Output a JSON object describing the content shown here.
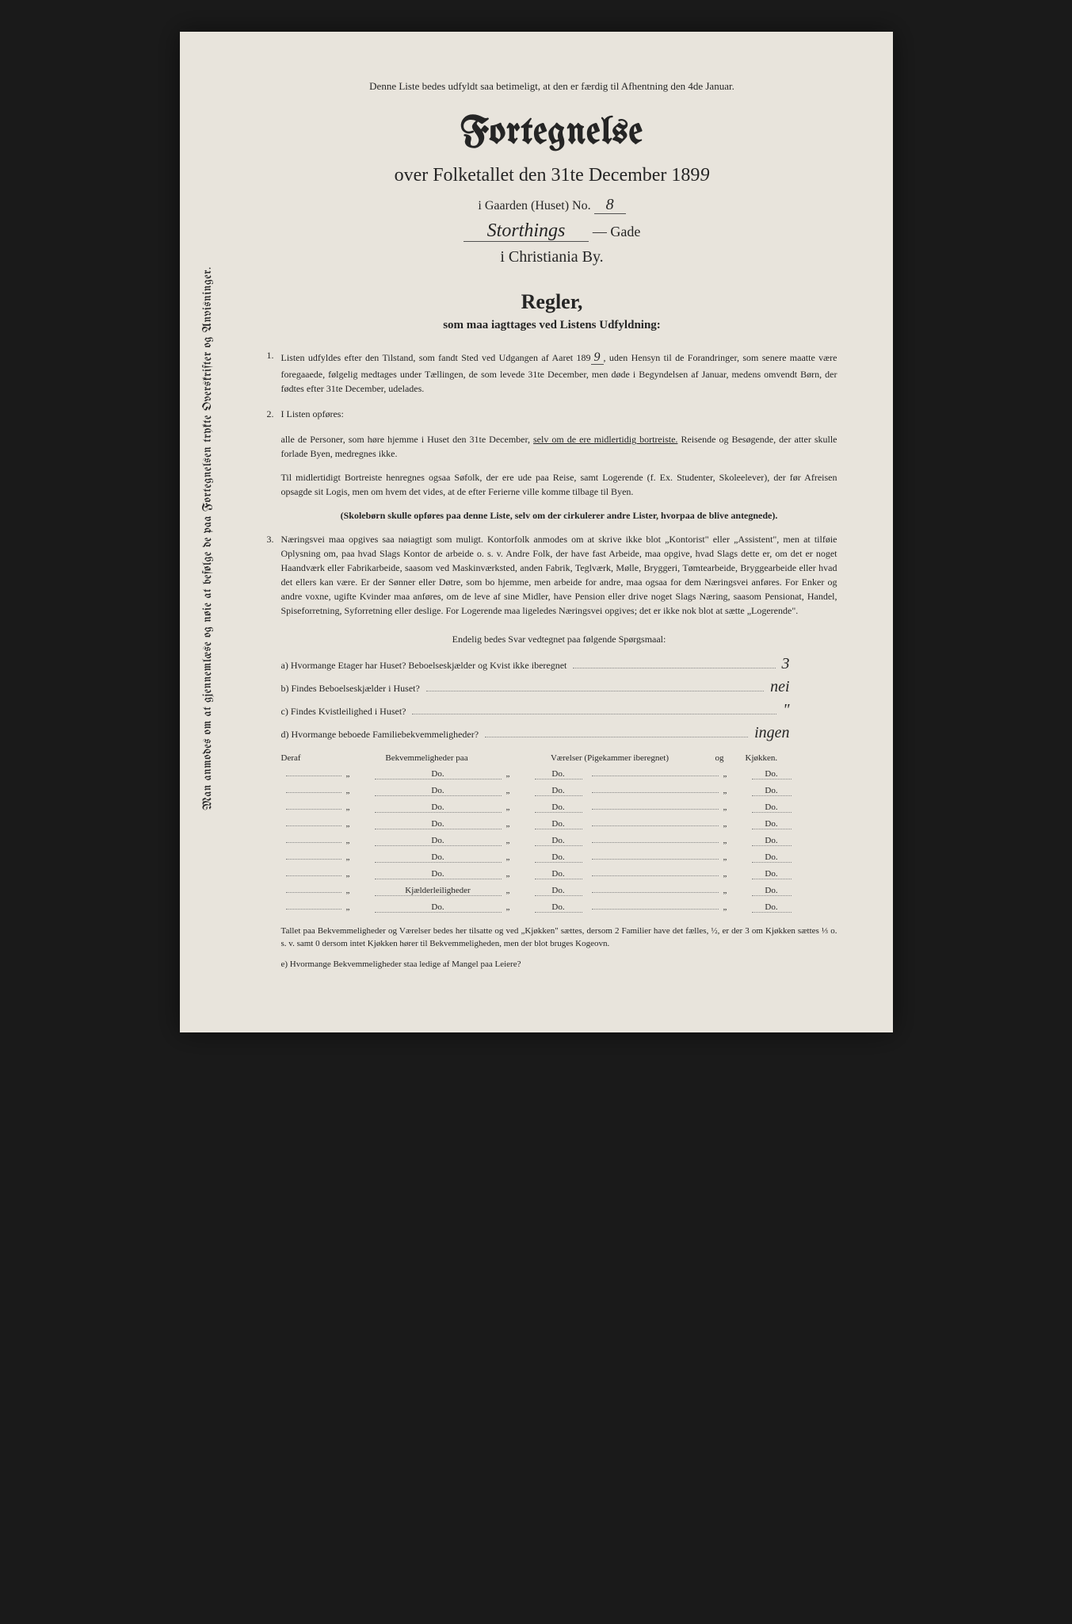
{
  "colors": {
    "page_bg": "#e8e4dc",
    "outer_bg": "#1a1a1a",
    "text": "#2a2a2a",
    "dotted": "#888888",
    "underline": "#555555"
  },
  "typography": {
    "blackletter_family": "Old English Text MT, UnifrakturMaguntia, serif",
    "script_family": "Brush Script MT, cursive",
    "body_family": "Georgia, Times New Roman, serif",
    "title_size_pt": 48,
    "subtitle_size_pt": 24,
    "body_size_pt": 12
  },
  "vertical_note": "Man anmodes om at gjennemlæse og nøie at befølge de paa Fortegnelsen trykte Overskrifter og Anvisninger.",
  "top_note": "Denne Liste bedes udfyldt saa betimeligt, at den er færdig til Afhentning den 4de Januar.",
  "title": "Fortegnelse",
  "subtitle_prefix": "over Folketallet den 31te December 189",
  "year_suffix": "9",
  "garden_label_pre": "i Gaarden (Huset) No.",
  "garden_no": "8",
  "street_hand": "Storthings",
  "street_suffix": "— Gade",
  "city": "i Christiania By.",
  "regler_title": "Regler,",
  "regler_sub": "som maa iagttages ved Listens Udfyldning:",
  "rule1_num": "1.",
  "rule1": "Listen udfyldes efter den Tilstand, som fandt Sted ved Udgangen af Aaret 189",
  "rule1_year": "9",
  "rule1_cont": ", uden Hensyn til de Forandringer, som senere maatte være foregaaede, følgelig medtages under Tællingen, de som levede 31te December, men døde i Begyndelsen af Januar, medens omvendt Børn, der fødtes efter 31te December, udelades.",
  "rule2_num": "2.",
  "rule2_intro": "I Listen opføres:",
  "rule2_a": "alle de Personer, som høre hjemme i Huset den 31te December, ",
  "rule2_a_u": "selv om de ere midlertidig bortreiste.",
  "rule2_a_end": " Reisende og Besøgende, der atter skulle forlade Byen, medregnes ikke.",
  "rule2_b": "Til midlertidigt Bortreiste henregnes ogsaa Søfolk, der ere ude paa Reise, samt Logerende (f. Ex. Studenter, Skoleelever), der før Afreisen opsagde sit Logis, men om hvem det vides, at de efter Ferierne ville komme tilbage til Byen.",
  "rule2_note": "(Skolebørn skulle opføres paa denne Liste, selv om der cirkulerer andre Lister, hvorpaa de blive antegnede).",
  "rule3_num": "3.",
  "rule3": "Næringsvei maa opgives saa nøiagtigt som muligt. Kontorfolk anmodes om at skrive ikke blot „Kontorist\" eller „Assistent\", men at tilføie Oplysning om, paa hvad Slags Kontor de arbeide o. s. v. Andre Folk, der have fast Arbeide, maa opgive, hvad Slags dette er, om det er noget Haandværk eller Fabrikarbeide, saasom ved Maskinværksted, anden Fabrik, Teglværk, Mølle, Bryggeri, Tømtearbeide, Bryggearbeide eller hvad det ellers kan være. Er der Sønner eller Døtre, som bo hjemme, men arbeide for andre, maa ogsaa for dem Næringsvei anføres. For Enker og andre voxne, ugifte Kvinder maa anføres, om de leve af sine Midler, have Pension eller drive noget Slags Næring, saasom Pensionat, Handel, Spiseforretning, Syforretning eller deslige. For Logerende maa ligeledes Næringsvei opgives; det er ikke nok blot at sætte „Logerende\".",
  "questions_intro": "Endelig bedes Svar vedtegnet paa følgende Spørgsmaal:",
  "qa_label": "a) Hvormange Etager har Huset? Beboelseskjælder og Kvist ikke iberegnet",
  "qa_ans": "3",
  "qb_label": "b) Findes Beboelseskjælder i Huset?",
  "qb_ans": "nei",
  "qc_label": "c) Findes Kvistleilighed i Huset?",
  "qc_ans": "\"",
  "qd_label": "d) Hvormange beboede Familiebekvemmeligheder?",
  "qd_ans": "ingen",
  "grid_header": {
    "deraf": "Deraf",
    "bekvem": "Bekvemmeligheder paa",
    "vaerelser": "Værelser (Pigekammer iberegnet)",
    "og": "og",
    "kjokken": "Kjøkken."
  },
  "grid_rows": [
    {
      "c1": "",
      "c3": "Do.",
      "c5": "Do.",
      "c8": "Do."
    },
    {
      "c1": "",
      "c3": "Do.",
      "c5": "Do.",
      "c8": "Do."
    },
    {
      "c1": "",
      "c3": "Do.",
      "c5": "Do.",
      "c8": "Do."
    },
    {
      "c1": "",
      "c3": "Do.",
      "c5": "Do.",
      "c8": "Do."
    },
    {
      "c1": "",
      "c3": "Do.",
      "c5": "Do.",
      "c8": "Do."
    },
    {
      "c1": "",
      "c3": "Do.",
      "c5": "Do.",
      "c8": "Do."
    },
    {
      "c1": "",
      "c3": "Do.",
      "c5": "Do.",
      "c8": "Do."
    },
    {
      "c1": "",
      "c3": "Kjælderleiligheder",
      "c5": "Do.",
      "c8": "Do."
    },
    {
      "c1": "",
      "c3": "Do.",
      "c5": "Do.",
      "c8": "Do."
    }
  ],
  "footer_note": "Tallet paa Bekvemmeligheder og Værelser bedes her tilsatte og ved „Kjøkken\" sættes, dersom 2 Familier have det fælles, ½, er der 3 om Kjøkken sættes ⅓ o. s. v. samt 0 dersom intet Kjøkken hører til Bekvemmeligheden, men der blot bruges Kogeovn.",
  "footer_q": "e) Hvormange Bekvemmeligheder staa ledige af Mangel paa Leiere?"
}
